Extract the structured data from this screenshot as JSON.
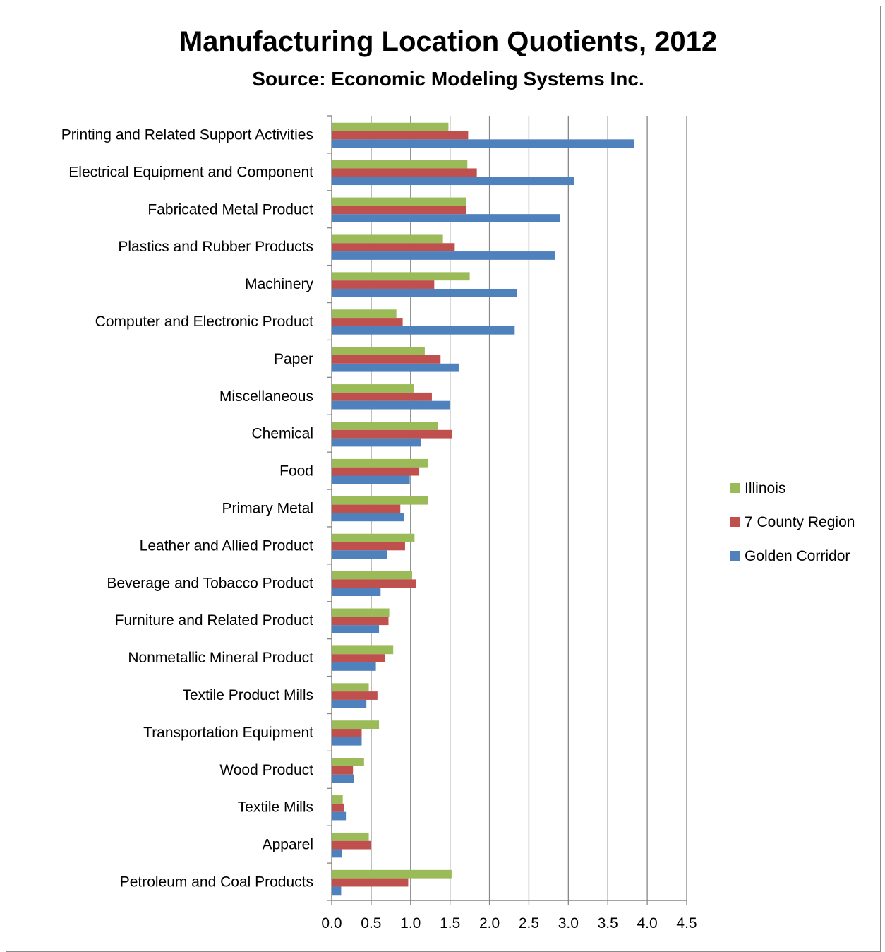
{
  "chart_data": {
    "type": "bar",
    "orientation": "horizontal",
    "title": "Manufacturing Location Quotients, 2012",
    "subtitle": "Source: Economic Modeling Systems Inc.",
    "categories": [
      "Printing and Related Support Activities",
      "Electrical Equipment and Component",
      "Fabricated Metal Product",
      "Plastics and Rubber Products",
      "Machinery",
      "Computer and Electronic Product",
      "Paper",
      "Miscellaneous",
      "Chemical",
      "Food",
      "Primary Metal",
      "Leather and Allied Product",
      "Beverage and Tobacco Product",
      "Furniture and Related Product",
      "Nonmetallic Mineral Product",
      "Textile Product Mills",
      "Transportation Equipment",
      "Wood Product",
      "Textile Mills",
      "Apparel",
      "Petroleum and Coal Products"
    ],
    "series": [
      {
        "name": "Illinois",
        "color": "#9bbb59",
        "values": [
          1.48,
          1.72,
          1.7,
          1.41,
          1.75,
          0.82,
          1.18,
          1.04,
          1.35,
          1.22,
          1.22,
          1.05,
          1.02,
          0.73,
          0.78,
          0.47,
          0.6,
          0.41,
          0.14,
          0.47,
          1.52
        ]
      },
      {
        "name": "7 County Region",
        "color": "#c0504d",
        "values": [
          1.73,
          1.84,
          1.7,
          1.56,
          1.3,
          0.9,
          1.38,
          1.27,
          1.53,
          1.11,
          0.87,
          0.93,
          1.07,
          0.72,
          0.68,
          0.58,
          0.38,
          0.27,
          0.16,
          0.5,
          0.97
        ]
      },
      {
        "name": "Golden Corridor",
        "color": "#4f81bd",
        "values": [
          3.83,
          3.07,
          2.89,
          2.83,
          2.35,
          2.32,
          1.61,
          1.5,
          1.13,
          0.99,
          0.92,
          0.7,
          0.62,
          0.6,
          0.56,
          0.44,
          0.38,
          0.28,
          0.18,
          0.13,
          0.12
        ]
      }
    ],
    "xlim": [
      0,
      4.5
    ],
    "xticks": [
      "0.0",
      "0.5",
      "1.0",
      "1.5",
      "2.0",
      "2.5",
      "3.0",
      "3.5",
      "4.0",
      "4.5"
    ],
    "xlabel": "",
    "ylabel": "",
    "grid": true,
    "legend_position": "right"
  }
}
